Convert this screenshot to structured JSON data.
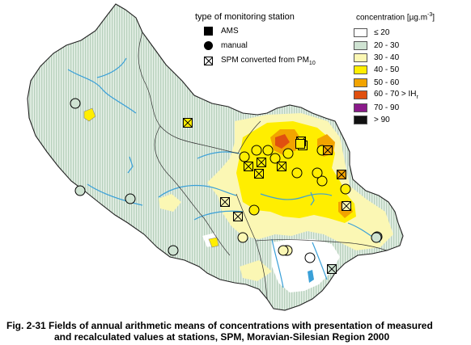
{
  "legend_station": {
    "title": "type of monitoring station",
    "items": [
      {
        "symbol": "square",
        "label": "AMS"
      },
      {
        "symbol": "circle",
        "label": "manual"
      },
      {
        "symbol": "crossed-square",
        "label": "SPM converted from PM",
        "sub": "10"
      }
    ]
  },
  "legend_concentration": {
    "title": "concentration [µg.m",
    "title_sup": "-3",
    "title_end": "]",
    "classes": [
      {
        "label": "≤ 20",
        "color": "#ffffff"
      },
      {
        "label": "20 - 30",
        "color": "#cfe3d2"
      },
      {
        "label": "30 - 40",
        "color": "#fbf7b4"
      },
      {
        "label": "40 - 50",
        "color": "#ffee00"
      },
      {
        "label": "50 - 60",
        "color": "#f2a400"
      },
      {
        "label": "60 - 70 > IH",
        "sub": "r",
        "color": "#e05010"
      },
      {
        "label": "70 - 90",
        "color": "#8a1a8a"
      },
      {
        "label": "> 90",
        "color": "#111111"
      }
    ]
  },
  "caption": {
    "line1": "Fig. 2-31  Fields of annual arithmetic means of concentrations with presentation of measured",
    "line2": "and recalculated values at stations, SPM, Moravian-Silesian Region 2000"
  },
  "stations": [
    {
      "type": "manual",
      "class": "20 - 30"
    },
    {
      "type": "manual",
      "class": "20 - 30"
    },
    {
      "type": "manual",
      "class": "20 - 30"
    },
    {
      "type": "manual",
      "class": "20 - 30"
    },
    {
      "type": "manual",
      "class": "20 - 30"
    },
    {
      "type": "manual",
      "class": "20 - 30"
    },
    {
      "type": "manual",
      "class": "20 - 30"
    },
    {
      "type": "manual",
      "class": "≤ 20"
    },
    {
      "type": "manual",
      "class": "30 - 40"
    },
    {
      "type": "manual",
      "class": "30 - 40"
    },
    {
      "type": "manual",
      "class": "30 - 40"
    },
    {
      "type": "manual",
      "class": "40 - 50"
    },
    {
      "type": "manual",
      "class": "40 - 50"
    },
    {
      "type": "manual",
      "class": "40 - 50"
    },
    {
      "type": "manual",
      "class": "40 - 50"
    },
    {
      "type": "manual",
      "class": "40 - 50"
    },
    {
      "type": "manual",
      "class": "40 - 50"
    },
    {
      "type": "manual",
      "class": "40 - 50"
    },
    {
      "type": "manual",
      "class": "40 - 50"
    },
    {
      "type": "manual",
      "class": "40 - 50"
    },
    {
      "type": "manual",
      "class": "40 - 50"
    },
    {
      "type": "manual",
      "class": "40 - 50"
    },
    {
      "type": "AMS",
      "class": "40 - 50"
    },
    {
      "type": "converted",
      "class": "40 - 50"
    },
    {
      "type": "converted",
      "class": "40 - 50"
    },
    {
      "type": "converted",
      "class": "40 - 50"
    },
    {
      "type": "converted",
      "class": "40 - 50"
    },
    {
      "type": "converted",
      "class": "40 - 50"
    },
    {
      "type": "converted",
      "class": "50 - 60"
    },
    {
      "type": "converted",
      "class": "50 - 60"
    },
    {
      "type": "converted",
      "class": "40 - 50"
    },
    {
      "type": "converted",
      "class": "30 - 40"
    },
    {
      "type": "converted",
      "class": "30 - 40"
    },
    {
      "type": "converted",
      "class": "30 - 40"
    },
    {
      "type": "converted",
      "class": "20 - 30"
    },
    {
      "type": "AMS",
      "class": "40 - 50"
    }
  ]
}
